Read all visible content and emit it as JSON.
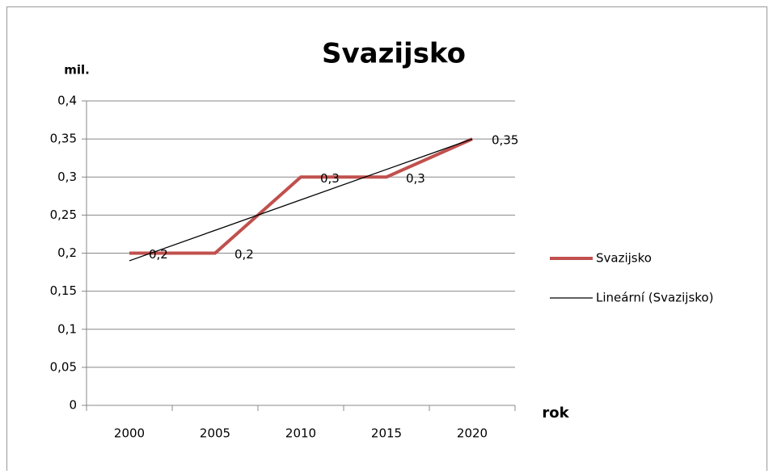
{
  "chart_data": {
    "type": "line",
    "title": "Svazijsko",
    "y_label": "mil.",
    "x_label": "rok",
    "categories": [
      "2000",
      "2005",
      "2010",
      "2015",
      "2020"
    ],
    "series": [
      {
        "name": "Svazijsko",
        "color": "#c0504d",
        "values": [
          0.2,
          0.2,
          0.3,
          0.3,
          0.35
        ],
        "value_labels": [
          "0,2",
          "0,2",
          "0,3",
          "0,3",
          "0,35"
        ]
      },
      {
        "name": "Lineární (Svazijsko)",
        "color": "#000000",
        "values": [
          0.19,
          0.23,
          0.27,
          0.31,
          0.35
        ]
      }
    ],
    "ylim": [
      0,
      0.4
    ],
    "yticks": [
      0,
      {
        "value": 0.05,
        "label": "0,05"
      },
      {
        "value": 0.1,
        "label": "0,1"
      },
      {
        "value": 0.15,
        "label": "0,15"
      },
      {
        "value": 0.2,
        "label": "0,2"
      },
      {
        "value": 0.25,
        "label": "0,25"
      },
      {
        "value": 0.3,
        "label": "0,3"
      },
      {
        "value": 0.35,
        "label": "0,35"
      },
      {
        "value": 0.4,
        "label": "0,4"
      }
    ],
    "grid": true,
    "legend": "right"
  }
}
